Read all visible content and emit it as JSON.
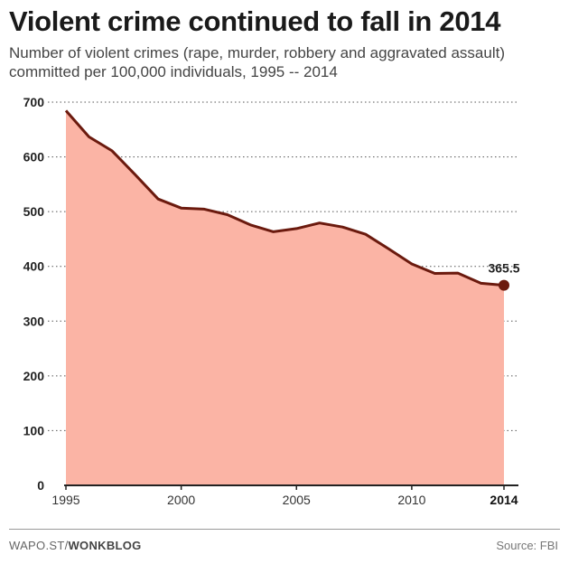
{
  "title": "Violent crime continued to fall in 2014",
  "subtitle": "Number of violent crimes (rape, murder, robbery and aggravated assault) committed per 100,000 individuals, 1995 -- 2014",
  "footer": {
    "credit_prefix": "WAPO.ST/",
    "credit_bold": "WONKBLOG",
    "source": "Source: FBI"
  },
  "colors": {
    "fill": "#fbb4a5",
    "line": "#6b1a0e",
    "marker": "#6b1a0e",
    "grid": "#555555"
  },
  "chart_data": {
    "type": "area",
    "x": [
      1995,
      1996,
      1997,
      1998,
      1999,
      2000,
      2001,
      2002,
      2003,
      2004,
      2005,
      2006,
      2007,
      2008,
      2009,
      2010,
      2011,
      2012,
      2013,
      2014
    ],
    "values": [
      684.5,
      636.6,
      611.0,
      567.6,
      523.0,
      506.5,
      504.5,
      494.4,
      475.8,
      463.2,
      469.0,
      479.3,
      471.8,
      458.6,
      431.9,
      404.5,
      387.1,
      387.8,
      369.1,
      365.5
    ],
    "ylim": [
      0,
      700
    ],
    "yticks": [
      0,
      100,
      200,
      300,
      400,
      500,
      600,
      700
    ],
    "xticks": [
      1995,
      2000,
      2005,
      2010,
      2014
    ],
    "xtick_bold": [
      2014
    ],
    "annotation": {
      "x": 2014,
      "label": "365.5"
    },
    "grid": true
  }
}
